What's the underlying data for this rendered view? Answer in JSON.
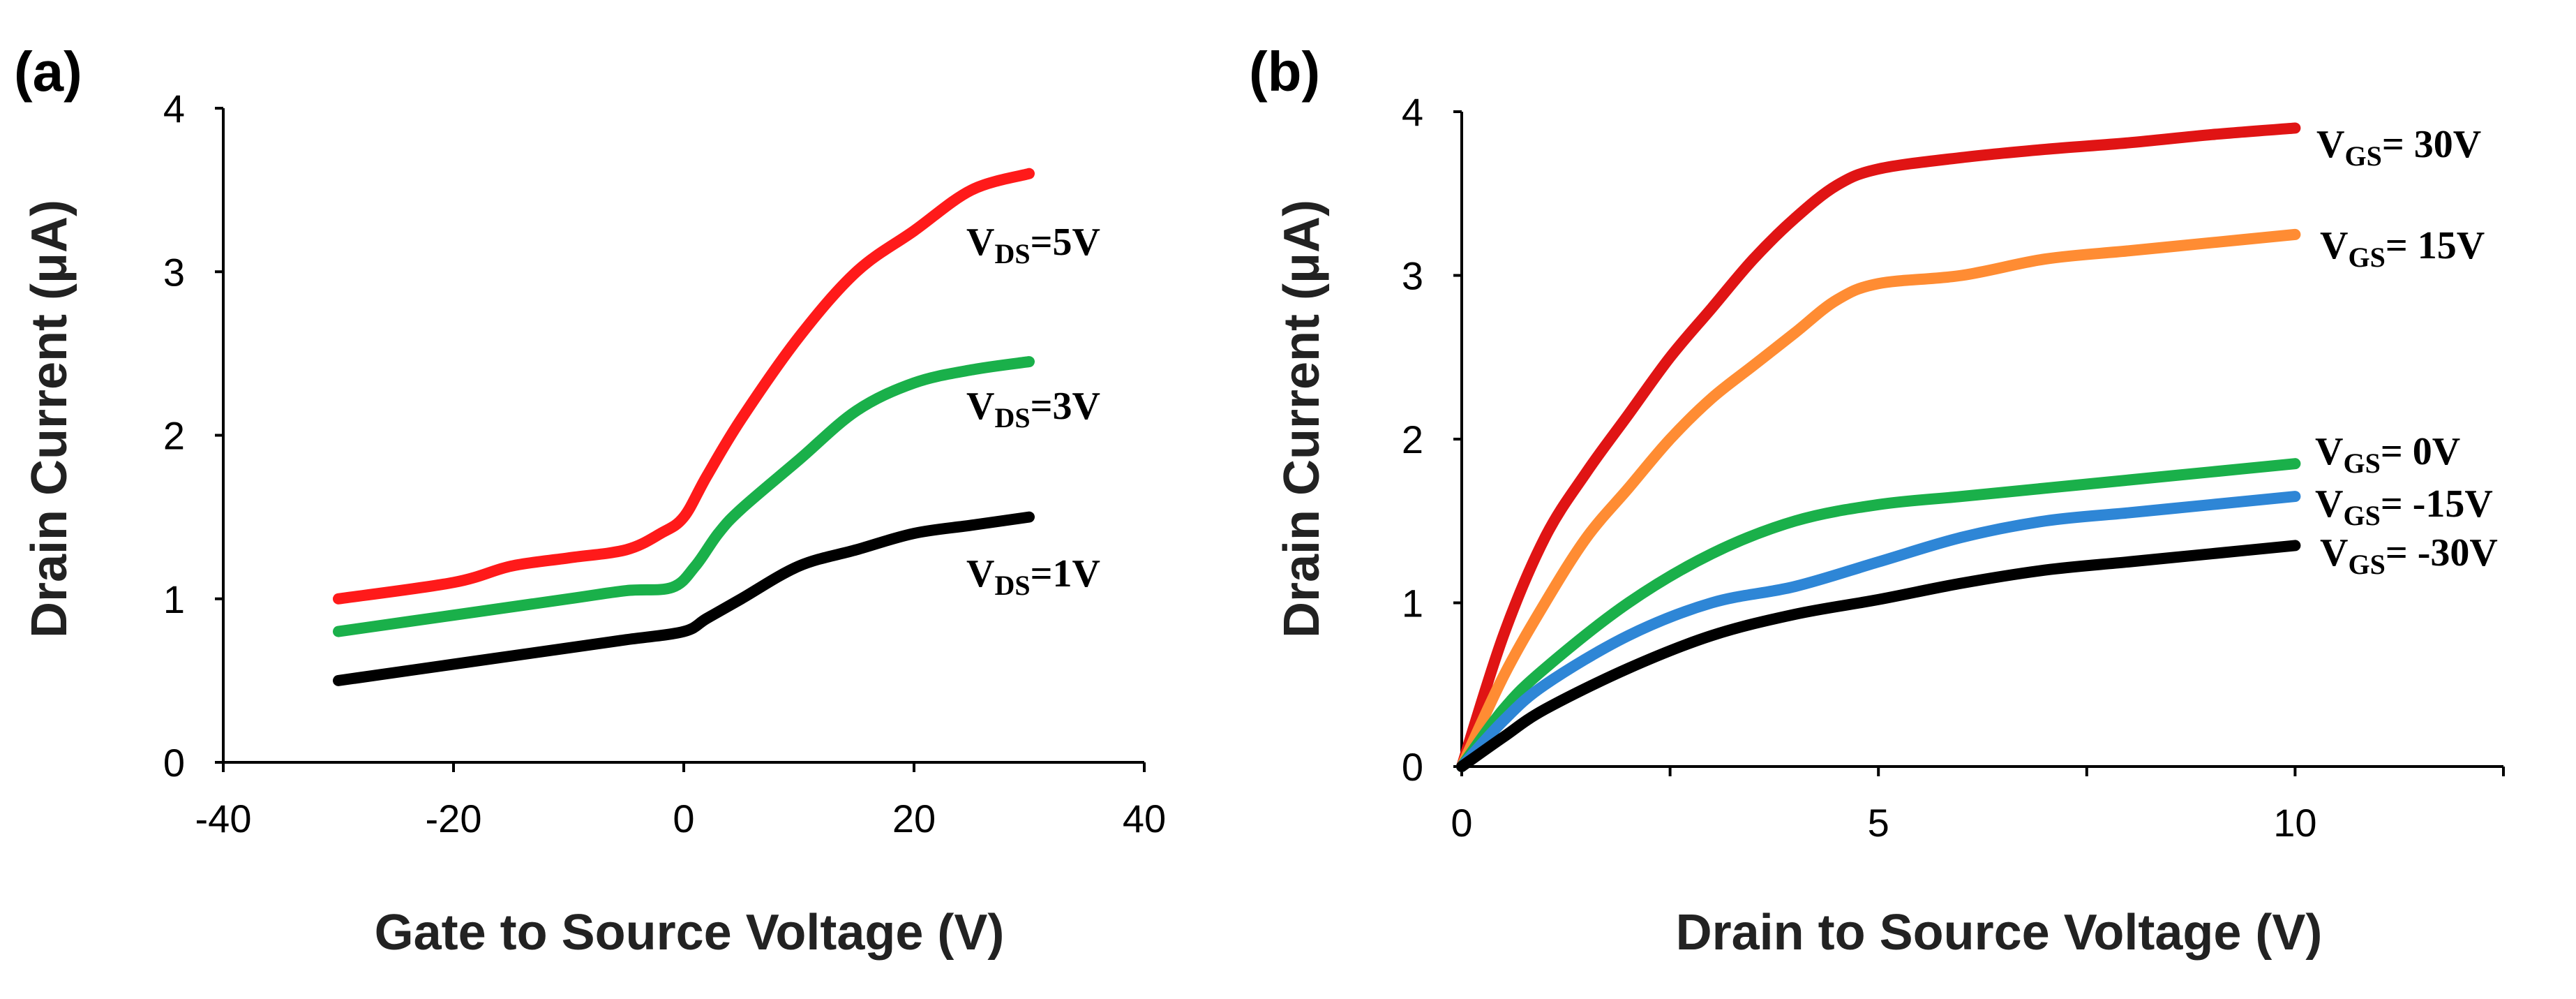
{
  "chart_data": [
    {
      "panel_label": "(a)",
      "type": "line",
      "xlabel": "Gate to Source Voltage (V)",
      "ylabel": "Drain Current (μA)",
      "xlim": [
        -40,
        40
      ],
      "ylim": [
        0,
        4
      ],
      "xticks": [
        -40,
        -20,
        0,
        20,
        40
      ],
      "yticks": [
        0,
        1,
        2,
        3,
        4
      ],
      "grid": false,
      "series": [
        {
          "label_main": "V",
          "label_sub": "DS",
          "label_rest": "=5V",
          "color": "#ff1a1a",
          "x": [
            -30,
            -20,
            -15,
            -10,
            -5,
            -2,
            0,
            2,
            5,
            10,
            15,
            20,
            25,
            30
          ],
          "y": [
            1.0,
            1.1,
            1.2,
            1.25,
            1.3,
            1.4,
            1.5,
            1.75,
            2.1,
            2.6,
            3.0,
            3.25,
            3.5,
            3.6
          ]
        },
        {
          "label_main": "V",
          "label_sub": "DS",
          "label_rest": "=3V",
          "color": "#1ab04a",
          "x": [
            -30,
            -20,
            -10,
            -5,
            -1,
            1,
            3,
            5,
            10,
            15,
            20,
            25,
            30
          ],
          "y": [
            0.8,
            0.9,
            1.0,
            1.05,
            1.07,
            1.2,
            1.4,
            1.55,
            1.85,
            2.15,
            2.32,
            2.4,
            2.45
          ]
        },
        {
          "label_main": "V",
          "label_sub": "DS",
          "label_rest": "=1V",
          "color": "#000000",
          "x": [
            -30,
            -20,
            -10,
            -5,
            0,
            2,
            5,
            10,
            15,
            20,
            25,
            30
          ],
          "y": [
            0.5,
            0.6,
            0.7,
            0.75,
            0.8,
            0.88,
            1.0,
            1.2,
            1.3,
            1.4,
            1.45,
            1.5
          ]
        }
      ]
    },
    {
      "panel_label": "(b)",
      "type": "line",
      "xlabel": "Drain to Source Voltage (V)",
      "ylabel": "Drain Current (μA)",
      "xlim": [
        0,
        12.5
      ],
      "ylim": [
        0,
        4
      ],
      "xticks": [
        0,
        5,
        10
      ],
      "xminor": [
        2.5,
        7.5,
        12.5
      ],
      "yticks": [
        0,
        1,
        2,
        3,
        4
      ],
      "grid": false,
      "series": [
        {
          "label_main": "V",
          "label_sub": "GS",
          "label_rest": "= 30V",
          "color": "#e01414",
          "x": [
            0,
            0.5,
            1,
            1.5,
            2,
            2.5,
            3,
            3.5,
            4,
            4.5,
            5,
            6,
            7,
            8,
            9,
            10
          ],
          "y": [
            0,
            0.8,
            1.4,
            1.8,
            2.15,
            2.5,
            2.8,
            3.1,
            3.35,
            3.55,
            3.65,
            3.72,
            3.77,
            3.81,
            3.86,
            3.9
          ]
        },
        {
          "label_main": "V",
          "label_sub": "GS",
          "label_rest": "= 15V",
          "color": "#ff8c33",
          "x": [
            0,
            0.5,
            1,
            1.5,
            2,
            2.5,
            3,
            3.5,
            4,
            4.5,
            5,
            6,
            7,
            8,
            9,
            10
          ],
          "y": [
            0,
            0.55,
            1.0,
            1.4,
            1.7,
            2.0,
            2.25,
            2.45,
            2.65,
            2.85,
            2.95,
            3.0,
            3.1,
            3.15,
            3.2,
            3.25
          ]
        },
        {
          "label_main": "V",
          "label_sub": "GS",
          "label_rest": "= 0V",
          "color": "#1ab04a",
          "x": [
            0,
            0.5,
            1,
            2,
            3,
            4,
            5,
            6,
            7,
            8,
            9,
            10
          ],
          "y": [
            0,
            0.35,
            0.6,
            1.0,
            1.3,
            1.5,
            1.6,
            1.65,
            1.7,
            1.75,
            1.8,
            1.85
          ]
        },
        {
          "label_main": "V",
          "label_sub": "GS",
          "label_rest": "= -15V",
          "color": "#2e86d6",
          "x": [
            0,
            0.5,
            1,
            2,
            3,
            4,
            5,
            6,
            7,
            8,
            9,
            10
          ],
          "y": [
            0,
            0.28,
            0.5,
            0.8,
            1.0,
            1.1,
            1.25,
            1.4,
            1.5,
            1.55,
            1.6,
            1.65
          ]
        },
        {
          "label_main": "V",
          "label_sub": "GS",
          "label_rest": "= -30V",
          "color": "#000000",
          "x": [
            0,
            0.5,
            1,
            2,
            3,
            4,
            5,
            6,
            7,
            8,
            9,
            10
          ],
          "y": [
            0,
            0.18,
            0.35,
            0.6,
            0.8,
            0.93,
            1.02,
            1.12,
            1.2,
            1.25,
            1.3,
            1.35
          ]
        }
      ]
    }
  ]
}
